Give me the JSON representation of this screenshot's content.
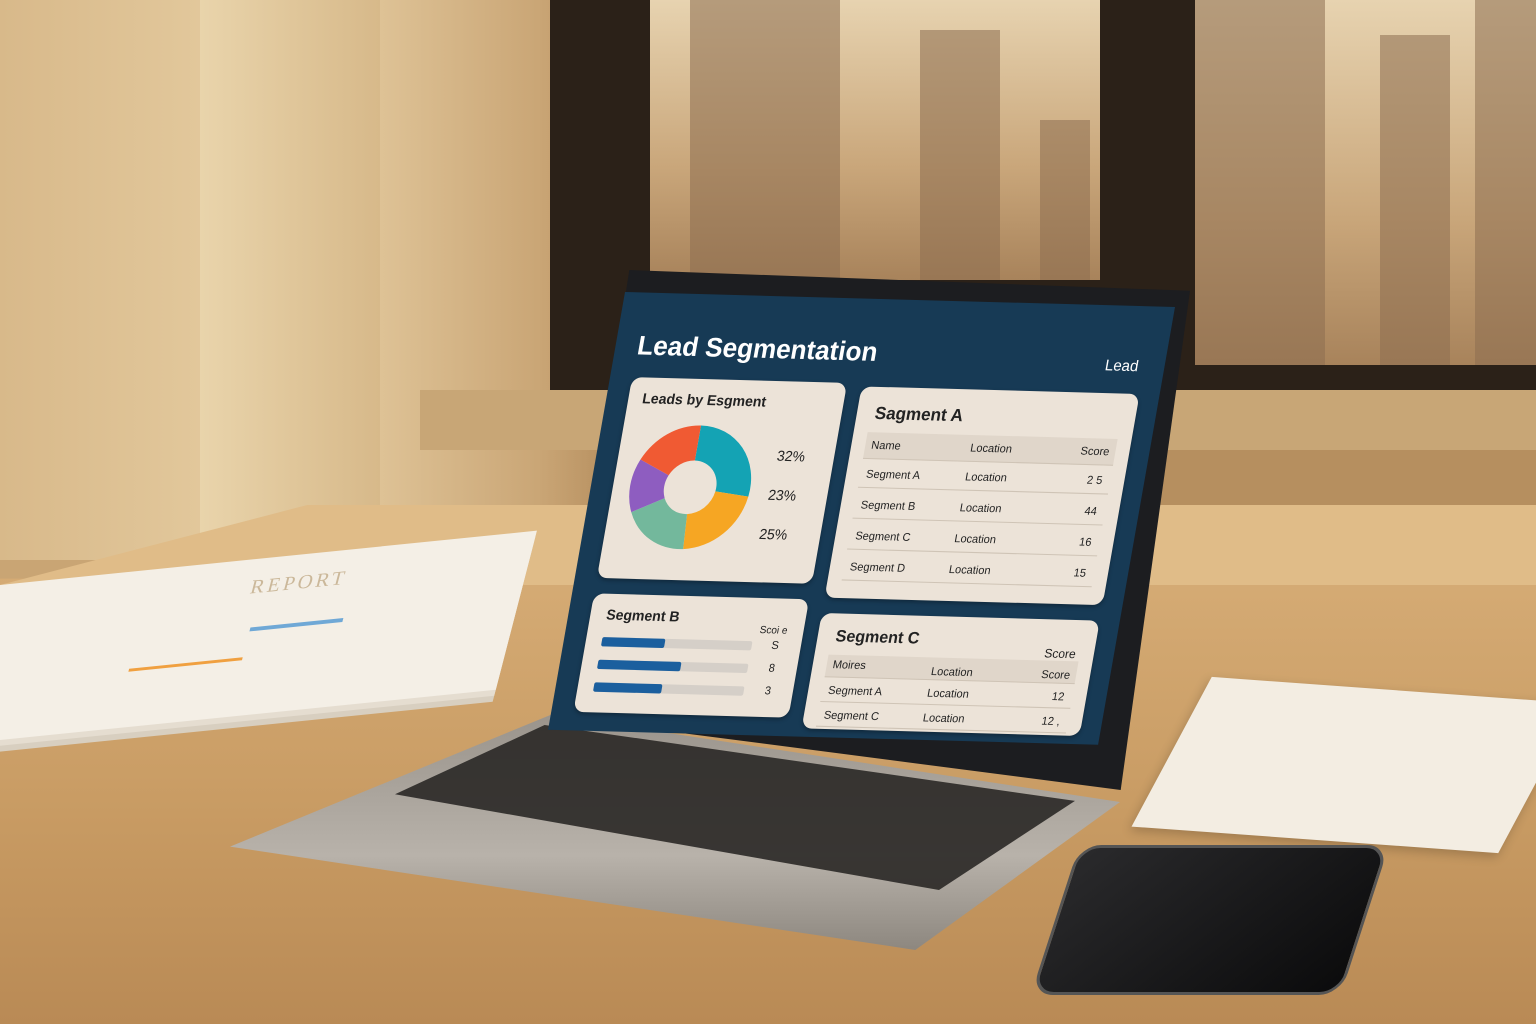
{
  "dashboard": {
    "title": "Lead Segmentation",
    "header_right": "Lead",
    "donut_card": {
      "title": "Leads by Esgment",
      "labels": [
        "32%",
        "23%",
        "25%"
      ],
      "slices": [
        {
          "color": "#14a3b4",
          "value": 27
        },
        {
          "color": "#f6a623",
          "value": 22
        },
        {
          "color": "#73b89c",
          "value": 19
        },
        {
          "color": "#8e5dc0",
          "value": 14
        },
        {
          "color": "#f05a33",
          "value": 18
        }
      ]
    },
    "segment_a": {
      "title": "Sagment A",
      "columns": [
        "Name",
        "Location",
        "Score"
      ],
      "rows": [
        [
          "Segment A",
          "Location",
          "2 5"
        ],
        [
          "Segment B",
          "Location",
          "44"
        ],
        [
          "Segment C",
          "Location",
          "16"
        ],
        [
          "Segment D",
          "Location",
          "15"
        ]
      ]
    },
    "segment_b": {
      "title": "Segment B",
      "column": "Scoi e",
      "bars": [
        {
          "fill": 0.42,
          "value": "S"
        },
        {
          "fill": 0.55,
          "value": "8"
        },
        {
          "fill": 0.45,
          "value": "3"
        }
      ],
      "bar_color": "#1b5f9e"
    },
    "segment_c": {
      "title": "Segment C",
      "header_score": "Score",
      "columns": [
        "Moires",
        "Location",
        "Score"
      ],
      "rows": [
        [
          "Segment A",
          "Location",
          "12"
        ],
        [
          "Segment C",
          "Location",
          "12 ,"
        ]
      ]
    }
  },
  "papers": {
    "title": "REPORT"
  }
}
